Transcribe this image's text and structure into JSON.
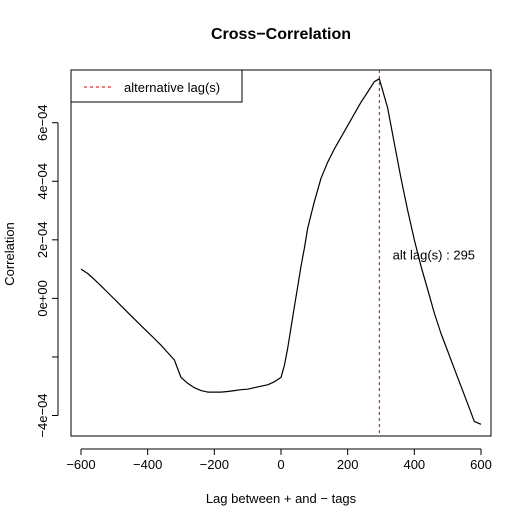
{
  "chart_data": {
    "type": "line",
    "title": "Cross−Correlation",
    "xlabel": "Lag between + and − tags",
    "ylabel": "Correlation",
    "xlim": [
      -630,
      630
    ],
    "ylim": [
      -0.00047,
      0.00078
    ],
    "x_ticks": [
      -600,
      -400,
      -200,
      0,
      200,
      400,
      600
    ],
    "x_tick_labels": [
      "−600",
      "−400",
      "−200",
      "0",
      "200",
      "400",
      "600"
    ],
    "y_ticks": [
      -0.0004,
      -0.0002,
      0,
      0.0002,
      0.0004,
      0.0006
    ],
    "y_tick_labels": [
      "−4e−04",
      "",
      "0e+00",
      "2e−04",
      "4e−04",
      "6e−04"
    ],
    "grid": false,
    "legend": {
      "position": "top-left",
      "entries": [
        {
          "label": "alternative lag(s)",
          "color": "#cc0000",
          "style": "dashed"
        }
      ]
    },
    "series": [
      {
        "color": "#000000",
        "x": [
          -600,
          -580,
          -560,
          -540,
          -520,
          -500,
          -480,
          -460,
          -440,
          -420,
          -400,
          -380,
          -360,
          -340,
          -320,
          -300,
          -280,
          -260,
          -240,
          -220,
          -200,
          -180,
          -160,
          -140,
          -120,
          -100,
          -80,
          -60,
          -40,
          -20,
          0,
          10,
          20,
          30,
          40,
          50,
          60,
          70,
          80,
          100,
          120,
          140,
          160,
          180,
          200,
          220,
          240,
          260,
          280,
          295,
          320,
          340,
          360,
          380,
          400,
          420,
          440,
          460,
          480,
          500,
          520,
          540,
          560,
          580,
          600
        ],
        "y": [
          0.0001,
          8.5e-05,
          6.5e-05,
          4.3e-05,
          2e-05,
          -2e-06,
          -2.5e-05,
          -4.8e-05,
          -7e-05,
          -9.3e-05,
          -0.000115,
          -0.000137,
          -0.00016,
          -0.000185,
          -0.00021,
          -0.00027,
          -0.00029,
          -0.000305,
          -0.000315,
          -0.00032,
          -0.00032,
          -0.00032,
          -0.000318,
          -0.000315,
          -0.000312,
          -0.00031,
          -0.000305,
          -0.0003,
          -0.000295,
          -0.000285,
          -0.00027,
          -0.00023,
          -0.00017,
          -0.0001,
          -3e-05,
          4e-05,
          0.00011,
          0.00017,
          0.00024,
          0.00033,
          0.00041,
          0.000465,
          0.00051,
          0.00055,
          0.00059,
          0.00063,
          0.00067,
          0.000705,
          0.00074,
          0.00075,
          0.00065,
          0.00053,
          0.00041,
          0.0003,
          0.0002,
          0.00011,
          3e-05,
          -5e-05,
          -0.00012,
          -0.00018,
          -0.00024,
          -0.0003,
          -0.00036,
          -0.00042,
          -0.00043
        ]
      }
    ],
    "vlines": [
      {
        "x": 295,
        "color": "#cc0000",
        "style": "dashed"
      }
    ],
    "annotations": [
      {
        "text": "alt lag(s) : 295",
        "x": 335,
        "y": 0.00015
      }
    ]
  }
}
